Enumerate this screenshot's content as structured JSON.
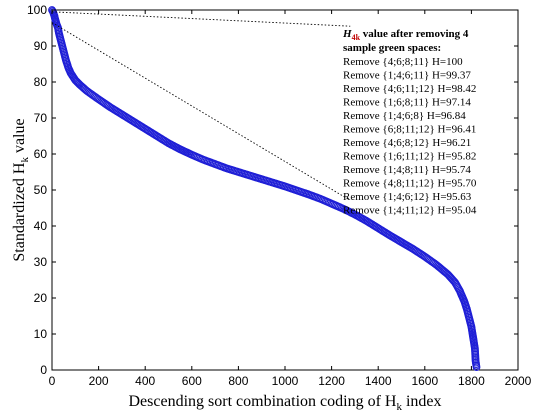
{
  "chart_data": {
    "type": "scatter",
    "xlabel_main": "Descending sort combination coding of H",
    "xlabel_sub": "k",
    "xlabel_tail": " index",
    "ylabel_main": "Standardized H",
    "ylabel_sub": "k",
    "ylabel_tail": " value",
    "xlim": [
      0,
      2000
    ],
    "ylim": [
      0,
      100
    ],
    "xticks": [
      0,
      200,
      400,
      600,
      800,
      1000,
      1200,
      1400,
      1600,
      1800,
      2000
    ],
    "yticks": [
      0,
      10,
      20,
      30,
      40,
      50,
      60,
      70,
      80,
      90,
      100
    ],
    "marker": "open-circle",
    "color": "#1f1fd6",
    "series_points": [
      [
        0,
        100
      ],
      [
        5,
        99.4
      ],
      [
        10,
        98.4
      ],
      [
        15,
        97.1
      ],
      [
        20,
        96.0
      ],
      [
        25,
        95.2
      ],
      [
        30,
        93.5
      ],
      [
        40,
        91.0
      ],
      [
        50,
        88.5
      ],
      [
        60,
        86.0
      ],
      [
        70,
        84.0
      ],
      [
        80,
        82.5
      ],
      [
        100,
        80.5
      ],
      [
        120,
        79.2
      ],
      [
        150,
        77.5
      ],
      [
        200,
        75.2
      ],
      [
        250,
        73.0
      ],
      [
        300,
        71.0
      ],
      [
        350,
        69.0
      ],
      [
        400,
        67.0
      ],
      [
        450,
        65.0
      ],
      [
        500,
        63.0
      ],
      [
        550,
        61.3
      ],
      [
        600,
        59.8
      ],
      [
        650,
        58.4
      ],
      [
        700,
        57.2
      ],
      [
        750,
        56.0
      ],
      [
        800,
        55.0
      ],
      [
        850,
        54.0
      ],
      [
        900,
        53.0
      ],
      [
        950,
        52.0
      ],
      [
        1000,
        51.0
      ],
      [
        1050,
        49.9
      ],
      [
        1100,
        48.8
      ],
      [
        1150,
        47.6
      ],
      [
        1200,
        46.2
      ],
      [
        1250,
        44.8
      ],
      [
        1300,
        43.2
      ],
      [
        1350,
        41.4
      ],
      [
        1400,
        39.4
      ],
      [
        1450,
        37.4
      ],
      [
        1500,
        35.5
      ],
      [
        1550,
        33.6
      ],
      [
        1600,
        31.5
      ],
      [
        1650,
        29.2
      ],
      [
        1700,
        26.5
      ],
      [
        1730,
        24.3
      ],
      [
        1750,
        22.0
      ],
      [
        1770,
        19.0
      ],
      [
        1780,
        17.0
      ],
      [
        1790,
        14.5
      ],
      [
        1800,
        12.0
      ],
      [
        1805,
        10.0
      ],
      [
        1810,
        8.0
      ],
      [
        1815,
        6.0
      ],
      [
        1818,
        2.5
      ],
      [
        1822,
        0.8
      ]
    ],
    "annotation_lines": [
      {
        "from": [
          0,
          99.5
        ],
        "to": [
          1280,
          95.5
        ]
      },
      {
        "from": [
          0,
          96.5
        ],
        "to": [
          1270,
          47.5
        ]
      }
    ],
    "annotation": {
      "heading_sym": "H",
      "heading_sub": "4k",
      "heading_rest": " value after removing 4",
      "heading_line2": "sample green spaces:",
      "lines": [
        "Remove {4;6;8;11} H=100",
        "Remove {1;4;6;11} H=99.37",
        "Remove {4;6;11;12} H=98.42",
        "Remove {1;6;8;11} H=97.14",
        "Remove {1;4;6;8} H=96.84",
        "Remove {6;8;11;12} H=96.41",
        "Remove {4;6;8;12} H=96.21",
        "Remove {1;6;11;12} H=95.82",
        "Remove {1;4;8;11} H=95.74",
        "Remove {4;8;11;12} H=95.70",
        "Remove {1;4;6;12} H=95.63",
        "Remove {1;4;11;12} H=95.04"
      ]
    }
  }
}
